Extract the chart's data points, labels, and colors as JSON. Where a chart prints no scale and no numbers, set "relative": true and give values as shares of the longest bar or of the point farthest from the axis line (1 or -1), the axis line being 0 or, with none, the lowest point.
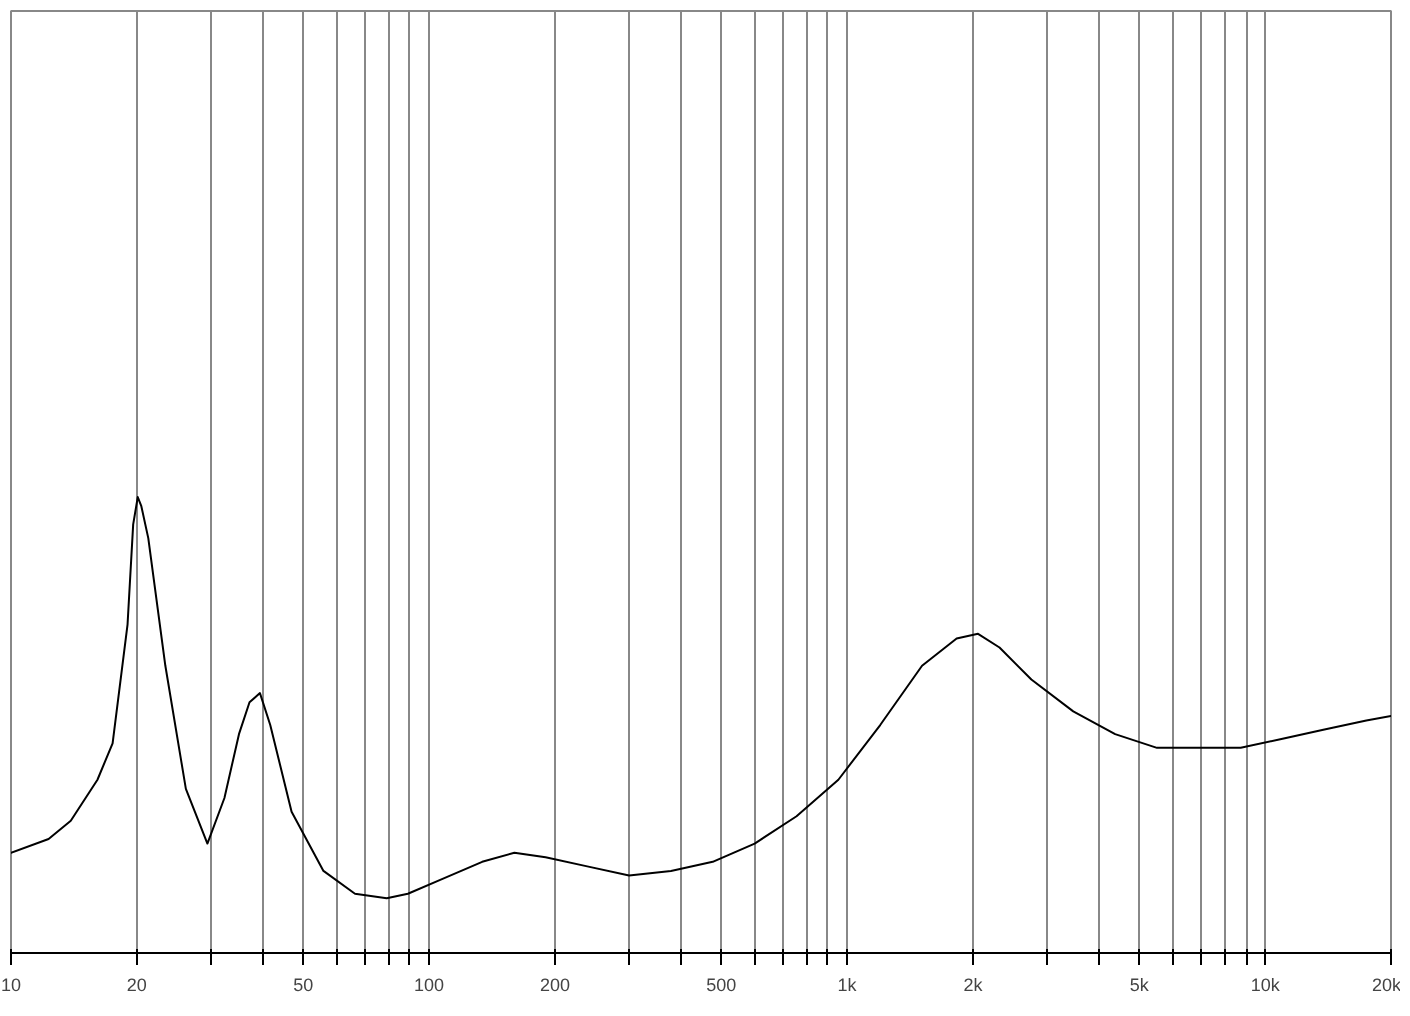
{
  "chart_data": {
    "type": "line",
    "relative": true,
    "log": "x",
    "grid": "x",
    "color": "#000000",
    "xlim": [
      10,
      20000
    ],
    "xticks": [
      10,
      20,
      {
        "value": 30,
        "label": null
      },
      {
        "value": 40,
        "label": null
      },
      50,
      {
        "value": 60,
        "label": null
      },
      {
        "value": 70,
        "label": null
      },
      {
        "value": 80,
        "label": null
      },
      {
        "value": 90,
        "label": null
      },
      100,
      200,
      {
        "value": 300,
        "label": null
      },
      {
        "value": 400,
        "label": null
      },
      500,
      {
        "value": 600,
        "label": null
      },
      {
        "value": 700,
        "label": null
      },
      {
        "value": 800,
        "label": null
      },
      {
        "value": 900,
        "label": null
      },
      {
        "value": 1000,
        "label": "1k"
      },
      {
        "value": 2000,
        "label": "2k"
      },
      {
        "value": 3000,
        "label": null
      },
      {
        "value": 4000,
        "label": null
      },
      {
        "value": 5000,
        "label": "5k"
      },
      {
        "value": 6000,
        "label": null
      },
      {
        "value": 7000,
        "label": null
      },
      {
        "value": 8000,
        "label": null
      },
      {
        "value": 9000,
        "label": null
      },
      {
        "value": 10000,
        "label": "10k"
      },
      {
        "value": 20000,
        "label": "20k"
      }
    ],
    "x": [
      10,
      12.3,
      13.9,
      16.1,
      17.5,
      19.0,
      19.6,
      20.1,
      20.5,
      21.3,
      23.4,
      26.2,
      29.5,
      32.4,
      35.1,
      37.2,
      39.4,
      41.7,
      46.9,
      55.9,
      66.5,
      79.2,
      89.0,
      106,
      134,
      160,
      190,
      239,
      301,
      379,
      477,
      601,
      757,
      953,
      1200,
      1511,
      1828,
      2057,
      2315,
      2759,
      3475,
      4377,
      5511,
      6940,
      8741,
      11007,
      13863,
      17459,
      20000
    ],
    "values": [
      0.22,
      0.25,
      0.29,
      0.38,
      0.46,
      0.72,
      0.94,
      1,
      0.98,
      0.91,
      0.63,
      0.36,
      0.24,
      0.34,
      0.48,
      0.55,
      0.57,
      0.5,
      0.31,
      0.18,
      0.13,
      0.12,
      0.13,
      0.16,
      0.2,
      0.22,
      0.21,
      0.19,
      0.17,
      0.18,
      0.2,
      0.24,
      0.3,
      0.38,
      0.5,
      0.63,
      0.69,
      0.7,
      0.67,
      0.6,
      0.53,
      0.48,
      0.45,
      0.45,
      0.45,
      0.47,
      0.49,
      0.51,
      0.52
    ]
  }
}
